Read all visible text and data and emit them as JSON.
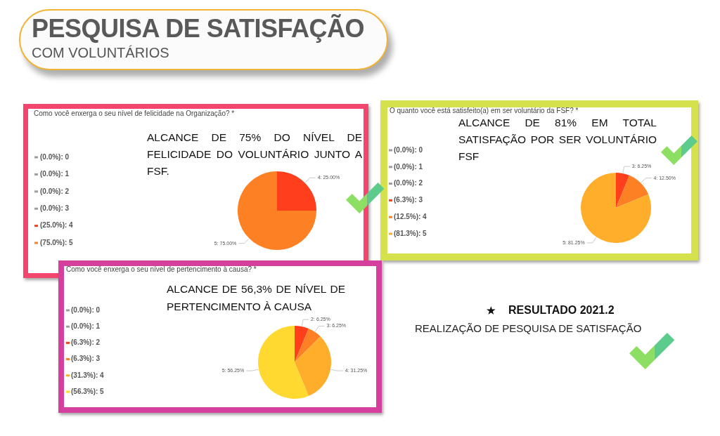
{
  "chart_data": [
    {
      "type": "other",
      "title": "PESQUISA DE SATISFAÇÃO",
      "subtitle": "COM VOLUNTÁRIOS"
    },
    {
      "type": "pie",
      "title": "Como você enxerga o seu nível de felicidade na Organização? *",
      "categories": [
        "(0.0%): 0",
        "(0.0%): 1",
        "(0.0%): 2",
        "(0.0%): 3",
        "(25.0%): 4",
        "(75.0%): 5"
      ],
      "values": [
        0,
        0,
        0,
        0,
        25,
        75
      ],
      "colors": [
        "#9e9e9e",
        "#9e9e9e",
        "#9e9e9e",
        "#9e9e9e",
        "#ff3f1c",
        "#fd8124"
      ],
      "value_labels": [
        null,
        null,
        null,
        null,
        "4: 25.00%",
        "5: 75.00%"
      ],
      "legend": "left",
      "annotations": [
        "ALCANCE DE 75% DO NÍVEL DE FELICIDADE DO VOLUNTÁRIO JUNTO A FSF."
      ]
    },
    {
      "type": "pie",
      "title": "O quanto você está satisfeito(a) em ser voluntário da FSF? *",
      "categories": [
        "(0.0%): 0",
        "(0.0%): 1",
        "(0.0%): 2",
        "(6.3%): 3",
        "(12.5%): 4",
        "(81.3%): 5"
      ],
      "values": [
        0,
        0,
        0,
        6.25,
        12.5,
        81.25
      ],
      "colors": [
        "#9e9e9e",
        "#9e9e9e",
        "#9e9e9e",
        "#ff3f1c",
        "#fd8124",
        "#ffae2b"
      ],
      "value_labels": [
        null,
        null,
        null,
        "3: 6.25%",
        "4: 12.50%",
        "5: 81.25%"
      ],
      "legend": "left",
      "annotations": [
        "ALCANCE DE 81% EM TOTAL SATISFAÇÃO POR SER VOLUNTÁRIO FSF"
      ]
    },
    {
      "type": "pie",
      "title": "Como você enxerga o seu nível de pertencimento à causa? *",
      "categories": [
        "(0.0%): 0",
        "(0.0%): 1",
        "(6.3%): 2",
        "(6.3%): 3",
        "(31.3%): 4",
        "(56.3%): 5"
      ],
      "values": [
        0,
        0,
        6.25,
        6.25,
        31.25,
        56.25
      ],
      "colors": [
        "#9e9e9e",
        "#9e9e9e",
        "#ff3f1c",
        "#fd8124",
        "#ffae2b",
        "#ffd92f"
      ],
      "value_labels": [
        null,
        null,
        "2: 6.25%",
        "3: 6.25%",
        "4: 31.25%",
        "5: 56.25%"
      ],
      "legend": "left",
      "annotations": [
        "ALCANCE DE 56,3% DE NÍVEL DE PERTENCIMENTO À CAUSA"
      ]
    },
    {
      "type": "other",
      "title": "RESULTADO 2021.2",
      "subtitle": "REALIZAÇÃO DE PESQUISA DE SATISFAÇÃO"
    }
  ]
}
